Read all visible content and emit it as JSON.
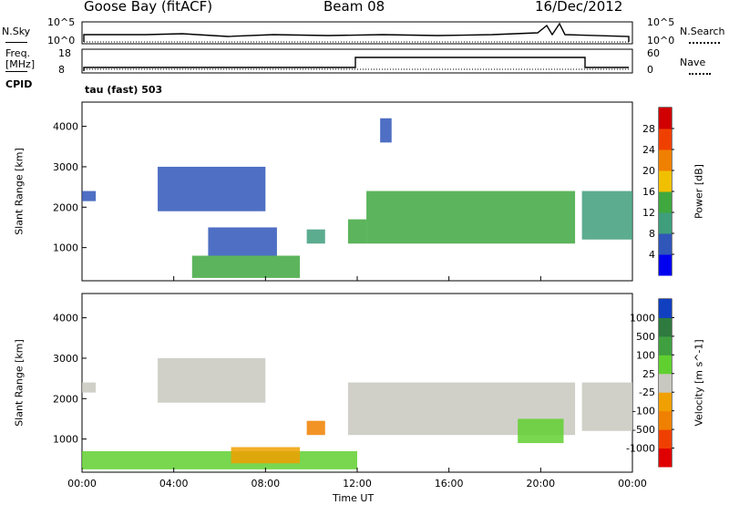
{
  "header": {
    "station": "Goose Bay (fitACF)",
    "beam": "Beam 08",
    "date": "16/Dec/2012"
  },
  "noise_panel": {
    "left_label": "N.Sky",
    "left_ticks": [
      "10^5",
      "10^0"
    ],
    "right_ticks": [
      "10^5",
      "10^0"
    ],
    "right_label": "N.Search"
  },
  "freq_panel": {
    "left_label_line1": "Freq.",
    "left_label_line2": "[MHz]",
    "left_ticks": [
      "18",
      "8"
    ],
    "right_ticks": [
      "60",
      "0"
    ],
    "right_label": "Nave",
    "cpid_label": "CPID",
    "cpid_text": "tau (fast) 503"
  },
  "chart_data": [
    {
      "type": "heatmap",
      "name": "power",
      "ylabel": "Slant Range [km]",
      "yticks": [
        "1000",
        "2000",
        "3000",
        "4000"
      ],
      "ylim": [
        180,
        4600
      ],
      "xlim": [
        0,
        24
      ],
      "colorbar": {
        "label": "Power [dB]",
        "ticks": [
          "4",
          "8",
          "12",
          "16",
          "20",
          "24",
          "28"
        ],
        "colors": [
          "#0000f0",
          "#2f56b8",
          "#3f9e7c",
          "#3fa83f",
          "#f0c000",
          "#f08000",
          "#f04000",
          "#d00000"
        ]
      },
      "regions": [
        {
          "x": [
            0.0,
            0.6
          ],
          "y": [
            2150,
            2400
          ],
          "level": 1
        },
        {
          "x": [
            3.3,
            8.0
          ],
          "y": [
            1900,
            3000
          ],
          "level": 1
        },
        {
          "x": [
            4.8,
            9.5
          ],
          "y": [
            250,
            800
          ],
          "level": 3
        },
        {
          "x": [
            5.5,
            8.5
          ],
          "y": [
            800,
            1500
          ],
          "level": 1
        },
        {
          "x": [
            9.8,
            10.6
          ],
          "y": [
            1100,
            1450
          ],
          "level": 2
        },
        {
          "x": [
            11.6,
            12.4
          ],
          "y": [
            1100,
            1700
          ],
          "level": 3
        },
        {
          "x": [
            12.4,
            21.5
          ],
          "y": [
            1100,
            2400
          ],
          "level": 3
        },
        {
          "x": [
            13.0,
            13.5
          ],
          "y": [
            3600,
            4200
          ],
          "level": 1
        },
        {
          "x": [
            21.8,
            24.0
          ],
          "y": [
            1200,
            2400
          ],
          "level": 2
        }
      ]
    },
    {
      "type": "heatmap",
      "name": "velocity",
      "xlabel": "Time UT",
      "ylabel": "Slant Range [km]",
      "yticks": [
        "1000",
        "2000",
        "3000",
        "4000"
      ],
      "xticks": [
        "00:00",
        "04:00",
        "08:00",
        "12:00",
        "16:00",
        "20:00",
        "00:00"
      ],
      "ylim": [
        180,
        4600
      ],
      "xlim": [
        0,
        24
      ],
      "colorbar": {
        "label": "Velocity [m s^-1]",
        "ticks": [
          "1000",
          "500",
          "100",
          "25",
          "-25",
          "-100",
          "-500",
          "-1000"
        ],
        "colors": [
          "#1040c0",
          "#2f7a3f",
          "#40a040",
          "#60d030",
          "#c8c8c0",
          "#f0a000",
          "#f08000",
          "#f04000",
          "#e00000"
        ]
      },
      "regions": [
        {
          "x": [
            0.0,
            0.6
          ],
          "y": [
            2150,
            2400
          ],
          "color": "#c8c8c0"
        },
        {
          "x": [
            3.3,
            8.0
          ],
          "y": [
            1900,
            3000
          ],
          "color": "#c8c8c0"
        },
        {
          "x": [
            0.0,
            12.0
          ],
          "y": [
            250,
            700
          ],
          "color": "#60d030"
        },
        {
          "x": [
            6.5,
            9.5
          ],
          "y": [
            400,
            800
          ],
          "color": "#f0a000"
        },
        {
          "x": [
            9.8,
            10.6
          ],
          "y": [
            1100,
            1450
          ],
          "color": "#f08000"
        },
        {
          "x": [
            11.6,
            21.5
          ],
          "y": [
            1100,
            2400
          ],
          "color": "#c8c8c0"
        },
        {
          "x": [
            19.0,
            21.0
          ],
          "y": [
            900,
            1500
          ],
          "color": "#60d030"
        },
        {
          "x": [
            21.8,
            24.0
          ],
          "y": [
            1200,
            2400
          ],
          "color": "#c8c8c0"
        }
      ]
    }
  ]
}
